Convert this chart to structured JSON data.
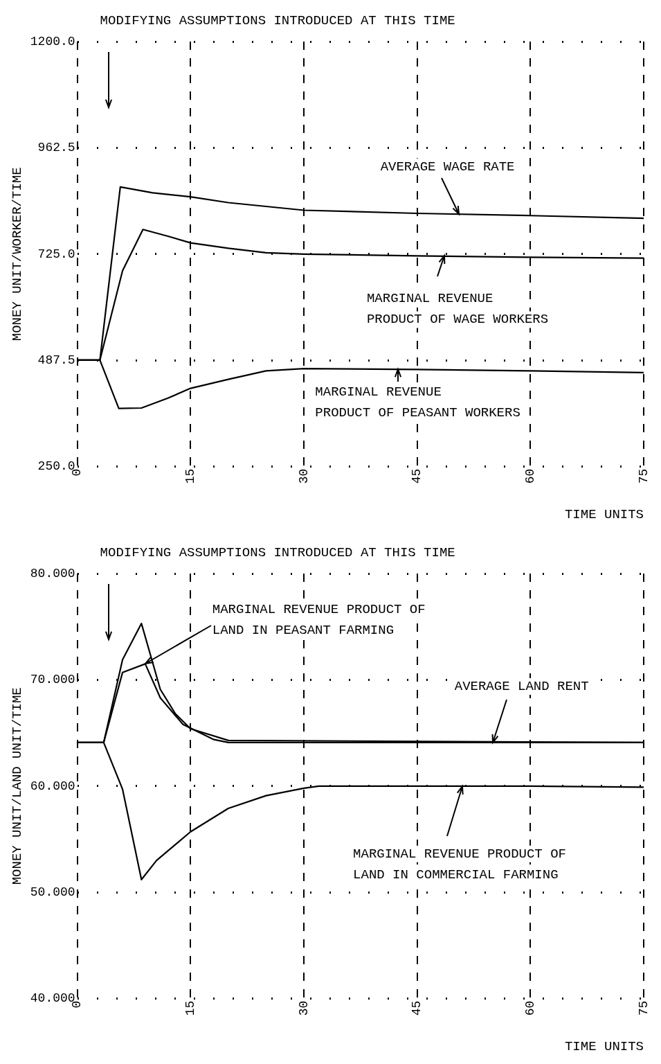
{
  "chart_data": [
    {
      "type": "line",
      "xlabel": "TIME UNITS",
      "ylabel": "MONEY UNIT/WORKER/TIME",
      "xlim": [
        0,
        75
      ],
      "xticks": [
        0,
        15,
        30,
        45,
        60,
        75
      ],
      "ylim": [
        250,
        1200
      ],
      "yticks": [
        {
          "value": 250,
          "label": "250.0"
        },
        {
          "value": 487.5,
          "label": "487.5"
        },
        {
          "value": 725,
          "label": "725.0"
        },
        {
          "value": 962.5,
          "label": "962.5"
        },
        {
          "value": 1200,
          "label": "1200.0"
        }
      ],
      "grid": true,
      "series": [
        {
          "color": "#000000",
          "x": [
            0,
            3,
            5.7,
            10,
            15,
            20,
            30,
            45,
            60,
            75
          ],
          "values": [
            488,
            488,
            875,
            862,
            853,
            840,
            823,
            816,
            811,
            805
          ]
        },
        {
          "color": "#000000",
          "x": [
            0,
            3,
            6,
            8.7,
            12,
            15,
            20,
            25,
            30,
            45,
            60,
            75
          ],
          "values": [
            488,
            488,
            688,
            780,
            765,
            750,
            738,
            728,
            725,
            721,
            718,
            716
          ]
        },
        {
          "color": "#000000",
          "x": [
            0,
            3,
            5.5,
            8.5,
            12,
            15,
            20,
            25,
            30,
            45,
            60,
            75
          ],
          "values": [
            488,
            488,
            380,
            381,
            403,
            425,
            445,
            464,
            469,
            467,
            464,
            460
          ]
        }
      ],
      "annotations": [
        "MODIFYING ASSUMPTIONS INTRODUCED AT THIS TIME",
        {
          "text": "AVERAGE WAGE RATE",
          "x": 50.5,
          "y": 815
        },
        {
          "text": "MARGINAL REVENUE\nPRODUCT OF WAGE WORKERS",
          "x": 48.6,
          "y": 721
        },
        {
          "text": "MARGINAL REVENUE\nPRODUCT OF PEASANT WORKERS",
          "x": 42.5,
          "y": 467
        }
      ]
    },
    {
      "type": "line",
      "xlabel": "TIME UNITS",
      "ylabel": "MONEY UNIT/LAND UNIT/TIME",
      "xlim": [
        0,
        75
      ],
      "xticks": [
        0,
        15,
        30,
        45,
        60,
        75
      ],
      "ylim": [
        40,
        80
      ],
      "yticks": [
        {
          "value": 40,
          "label": "40.000"
        },
        {
          "value": 50,
          "label": "50.000"
        },
        {
          "value": 60,
          "label": "60.000"
        },
        {
          "value": 70,
          "label": "70.000"
        },
        {
          "value": 80,
          "label": "80.000"
        }
      ],
      "grid": true,
      "series": [
        {
          "color": "#000000",
          "x": [
            0,
            3.5,
            6,
            8.5,
            11,
            13,
            15,
            20,
            75
          ],
          "values": [
            64.1,
            64.1,
            71.9,
            75.3,
            69.1,
            66.8,
            65.4,
            64.3,
            64.1
          ]
        },
        {
          "color": "#000000",
          "x": [
            0,
            3.5,
            6,
            9,
            11,
            14,
            18,
            20,
            75
          ],
          "values": [
            64.1,
            64.1,
            70.7,
            71.5,
            68.3,
            65.8,
            64.4,
            64.1,
            64.1
          ]
        },
        {
          "color": "#000000",
          "x": [
            0,
            3.5,
            6,
            8.5,
            10.5,
            15,
            20,
            25,
            30,
            32,
            45,
            60,
            75
          ],
          "values": [
            64.1,
            64.1,
            59.7,
            51.2,
            53,
            55.7,
            57.9,
            59.1,
            59.8,
            60,
            60,
            60,
            59.9
          ]
        }
      ],
      "annotations": [
        "MODIFYING ASSUMPTIONS INTRODUCED AT THIS TIME",
        {
          "text": "MARGINAL REVENUE PRODUCT OF\nLAND IN PEASANT FARMING",
          "x": 9,
          "y": 71.5
        },
        {
          "text": "AVERAGE LAND RENT",
          "x": 55,
          "y": 64.1
        },
        {
          "text": "MARGINAL REVENUE PRODUCT OF\nLAND IN COMMERCIAL FARMING",
          "x": 51,
          "y": 60
        }
      ]
    }
  ]
}
